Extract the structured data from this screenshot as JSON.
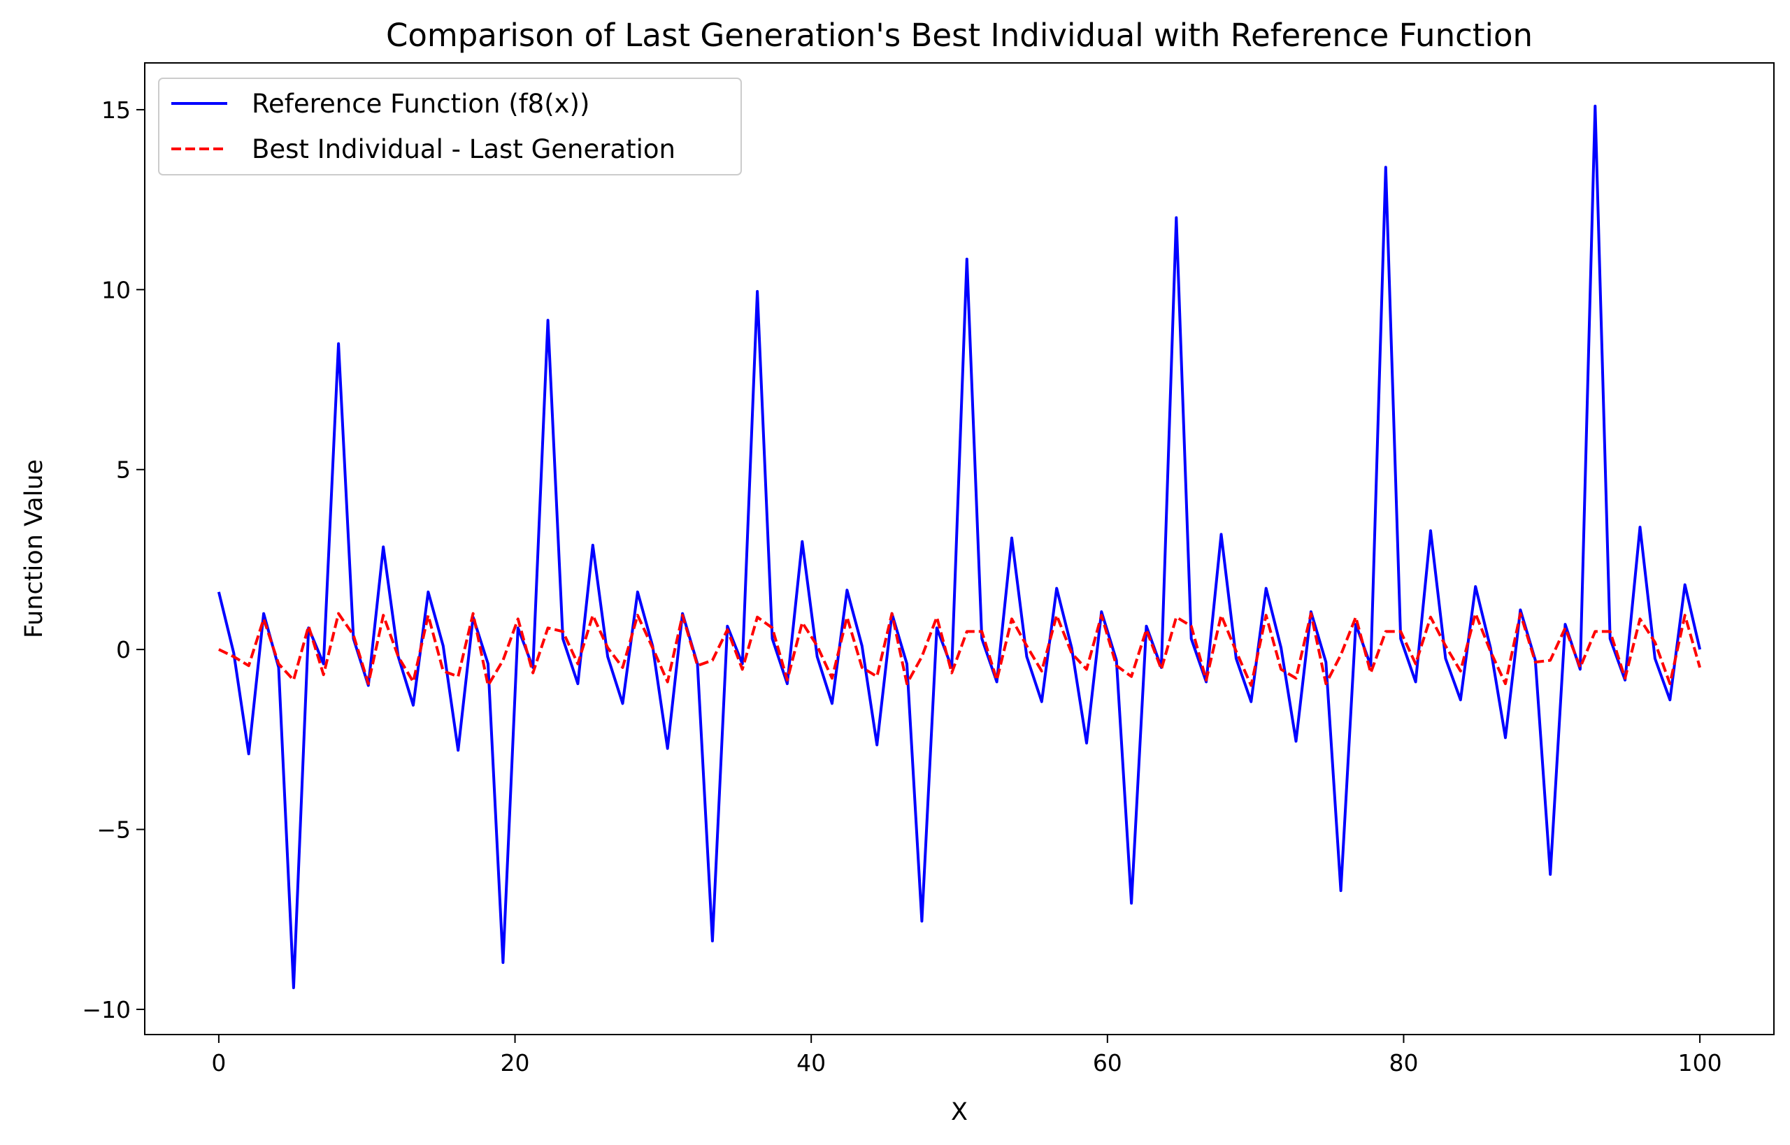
{
  "chart_data": {
    "type": "line",
    "title": "Comparison of Last Generation's Best Individual with Reference Function",
    "xlabel": "X",
    "ylabel": "Function Value",
    "xlim": [
      -5,
      105
    ],
    "ylim": [
      -10.7,
      16.3
    ],
    "xticks": [
      0,
      20,
      40,
      60,
      80,
      100
    ],
    "yticks": [
      -10,
      -5,
      0,
      5,
      10,
      15
    ],
    "xtick_labels": [
      "0",
      "20",
      "40",
      "60",
      "80",
      "100"
    ],
    "ytick_labels": [
      "−10",
      "−5",
      "0",
      "5",
      "10",
      "15"
    ],
    "grid": false,
    "legend_position": "upper-left",
    "series": [
      {
        "name": "Reference Function (f8(x))",
        "color": "#0000ff",
        "style": "solid",
        "x": [
          0,
          1.01,
          2.02,
          3.03,
          4.04,
          5.05,
          6.06,
          7.07,
          8.08,
          9.09,
          10.1,
          11.11,
          12.12,
          13.13,
          14.14,
          15.15,
          16.16,
          17.17,
          18.18,
          19.19,
          20.2,
          21.21,
          22.22,
          23.23,
          24.24,
          25.25,
          26.26,
          27.27,
          28.28,
          29.29,
          30.3,
          31.31,
          32.32,
          33.33,
          34.34,
          35.35,
          36.36,
          37.37,
          38.38,
          39.39,
          40.4,
          41.41,
          42.42,
          43.43,
          44.44,
          45.45,
          46.46,
          47.47,
          48.48,
          49.49,
          50.51,
          51.52,
          52.53,
          53.54,
          54.55,
          55.56,
          56.57,
          57.58,
          58.59,
          59.6,
          60.61,
          61.62,
          62.63,
          63.64,
          64.65,
          65.66,
          66.67,
          67.68,
          68.69,
          69.7,
          70.71,
          71.72,
          72.73,
          73.74,
          74.75,
          75.76,
          76.77,
          77.78,
          78.79,
          79.8,
          80.81,
          81.82,
          82.83,
          83.84,
          84.85,
          85.86,
          86.87,
          87.88,
          88.89,
          89.9,
          90.91,
          91.92,
          92.93,
          93.94,
          94.95,
          95.96,
          96.97,
          97.98,
          98.99,
          100
        ],
        "y": [
          1.6,
          -0.1,
          -2.9,
          1.0,
          -0.5,
          -9.4,
          0.6,
          -0.4,
          8.5,
          0.3,
          -1.0,
          2.85,
          -0.2,
          -1.55,
          1.6,
          0.1,
          -2.8,
          0.9,
          -0.4,
          -8.7,
          0.6,
          -0.5,
          9.15,
          0.3,
          -0.95,
          2.9,
          -0.2,
          -1.5,
          1.6,
          0.1,
          -2.75,
          1.0,
          -0.4,
          -8.1,
          0.65,
          -0.4,
          9.95,
          0.3,
          -0.95,
          3.0,
          -0.2,
          -1.5,
          1.65,
          0.1,
          -2.65,
          1.0,
          -0.4,
          -7.55,
          0.6,
          -0.5,
          10.85,
          0.3,
          -0.9,
          3.1,
          -0.2,
          -1.45,
          1.7,
          0.05,
          -2.6,
          1.05,
          -0.3,
          -7.05,
          0.65,
          -0.5,
          12.0,
          0.3,
          -0.9,
          3.2,
          -0.25,
          -1.45,
          1.7,
          0.05,
          -2.55,
          1.05,
          -0.35,
          -6.7,
          0.7,
          -0.45,
          13.4,
          0.3,
          -0.9,
          3.3,
          -0.25,
          -1.4,
          1.75,
          0.05,
          -2.45,
          1.1,
          -0.3,
          -6.25,
          0.7,
          -0.55,
          15.1,
          0.3,
          -0.85,
          3.4,
          -0.25,
          -1.4,
          1.8,
          0.0
        ]
      },
      {
        "name": "Best Individual - Last Generation",
        "color": "#ff0000",
        "style": "dashed",
        "x": [
          0,
          1.01,
          2.02,
          3.03,
          4.04,
          5.05,
          6.06,
          7.07,
          8.08,
          9.09,
          10.1,
          11.11,
          12.12,
          13.13,
          14.14,
          15.15,
          16.16,
          17.17,
          18.18,
          19.19,
          20.2,
          21.21,
          22.22,
          23.23,
          24.24,
          25.25,
          26.26,
          27.27,
          28.28,
          29.29,
          30.3,
          31.31,
          32.32,
          33.33,
          34.34,
          35.35,
          36.36,
          37.37,
          38.38,
          39.39,
          40.4,
          41.41,
          42.42,
          43.43,
          44.44,
          45.45,
          46.46,
          47.47,
          48.48,
          49.49,
          50.51,
          51.52,
          52.53,
          53.54,
          54.55,
          55.56,
          56.57,
          57.58,
          58.59,
          59.6,
          60.61,
          61.62,
          62.63,
          63.64,
          64.65,
          65.66,
          66.67,
          67.68,
          68.69,
          69.7,
          70.71,
          71.72,
          72.73,
          73.74,
          74.75,
          75.76,
          76.77,
          77.78,
          78.79,
          79.8,
          80.81,
          81.82,
          82.83,
          83.84,
          84.85,
          85.86,
          86.87,
          87.88,
          88.89,
          89.9,
          90.91,
          91.92,
          92.93,
          93.94,
          94.95,
          95.96,
          96.97,
          97.98,
          98.99,
          100
        ],
        "y": [
          0.0,
          -0.2,
          -0.45,
          0.85,
          -0.4,
          -0.85,
          0.65,
          -0.7,
          1.0,
          0.4,
          -0.95,
          0.95,
          -0.2,
          -0.9,
          0.95,
          -0.6,
          -0.75,
          1.0,
          -1.0,
          -0.3,
          0.85,
          -0.65,
          0.6,
          0.5,
          -0.4,
          0.95,
          0.05,
          -0.5,
          0.95,
          0.05,
          -0.9,
          0.95,
          -0.45,
          -0.3,
          0.55,
          -0.55,
          0.9,
          0.6,
          -0.85,
          0.75,
          0.1,
          -0.8,
          0.9,
          -0.5,
          -0.75,
          1.0,
          -0.95,
          -0.2,
          0.9,
          -0.65,
          0.5,
          0.5,
          -0.85,
          0.85,
          0.1,
          -0.6,
          0.95,
          -0.1,
          -0.55,
          0.95,
          -0.45,
          -0.75,
          0.55,
          -0.55,
          0.9,
          0.65,
          -0.85,
          0.95,
          -0.05,
          -1.0,
          0.95,
          -0.55,
          -0.8,
          1.0,
          -0.95,
          -0.15,
          0.9,
          -0.65,
          0.5,
          0.5,
          -0.4,
          0.9,
          0.1,
          -0.6,
          1.0,
          -0.05,
          -0.95,
          1.0,
          -0.35,
          -0.3,
          0.6,
          -0.5,
          0.5,
          0.5,
          -0.8,
          0.85,
          0.2,
          -0.95,
          0.95,
          -0.5
        ]
      }
    ]
  }
}
